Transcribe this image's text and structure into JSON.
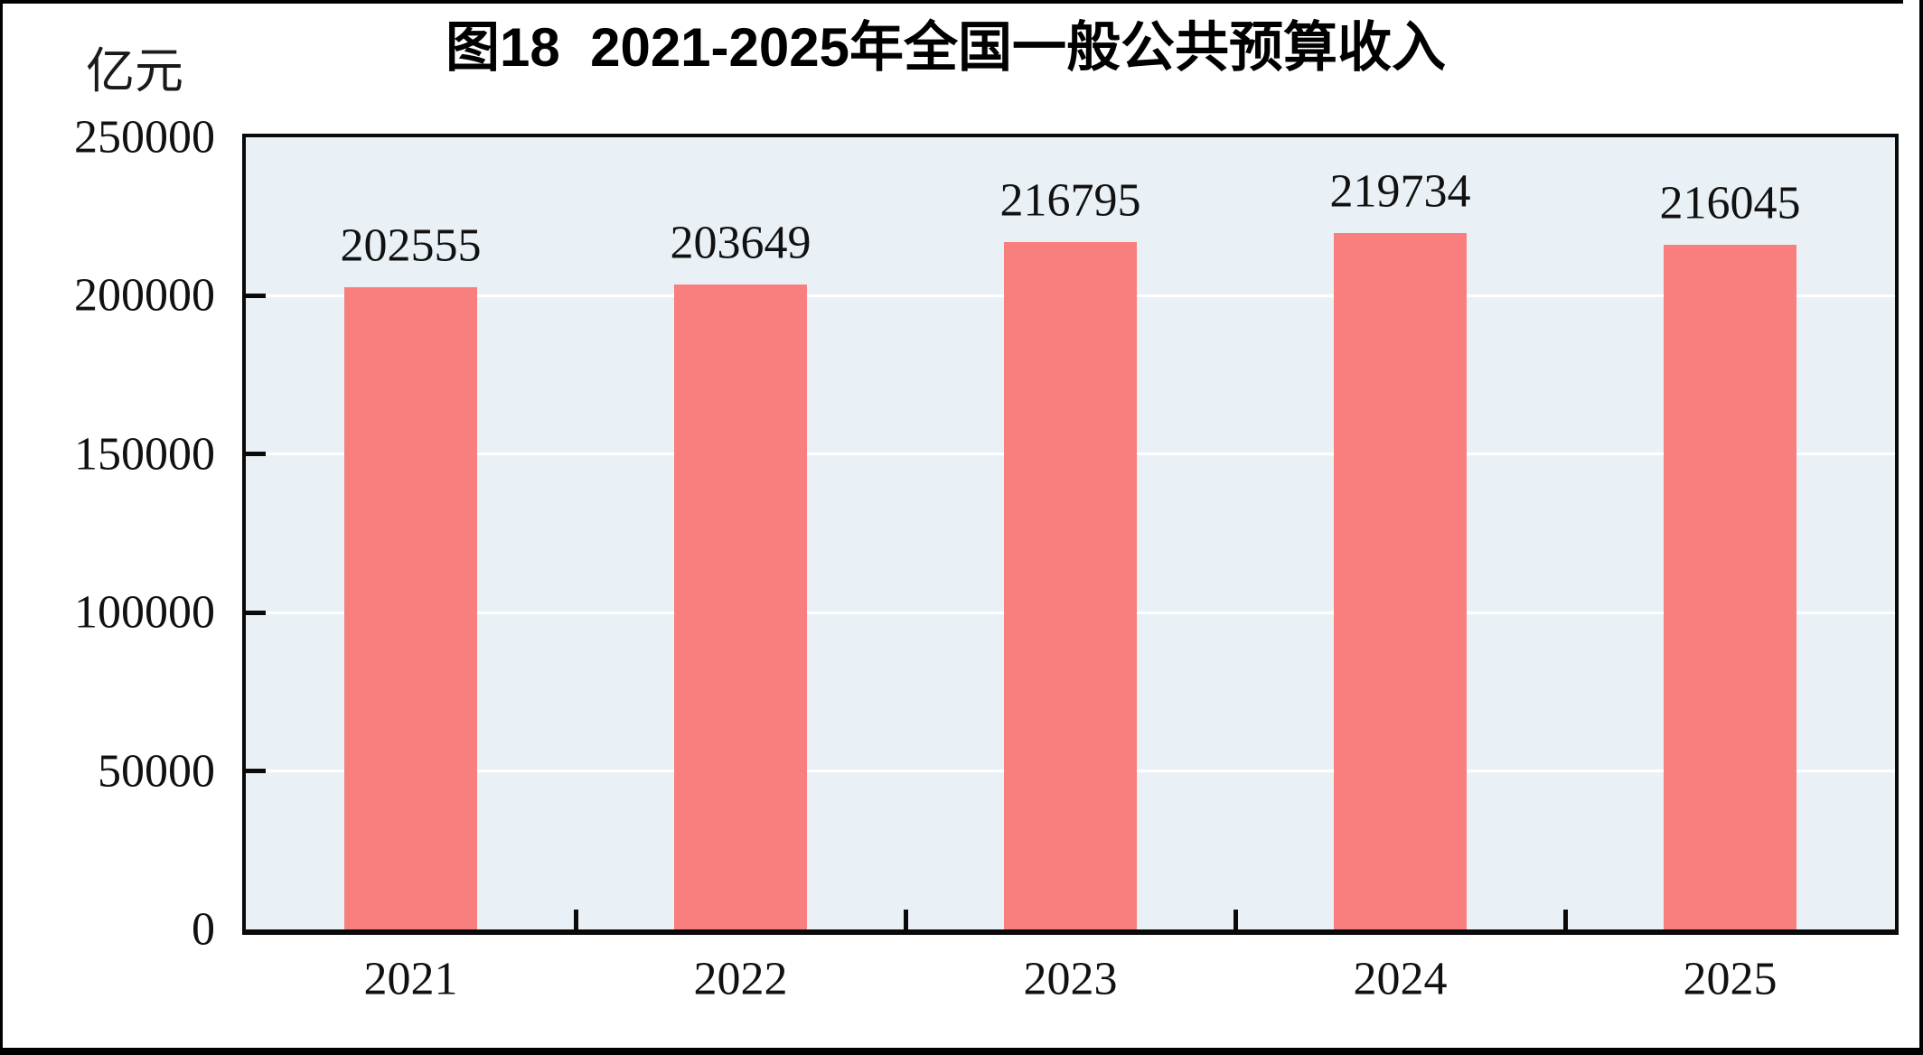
{
  "figure": {
    "title": "图18  2021-2025年全国一般公共预算收入",
    "unit_label": "亿元"
  },
  "chart_data": {
    "type": "bar",
    "title": "图18  2021-2025年全国一般公共预算收入",
    "unit": "亿元",
    "categories": [
      "2021",
      "2022",
      "2023",
      "2024",
      "2025"
    ],
    "values": [
      202555,
      203649,
      216795,
      219734,
      216045
    ],
    "xlabel": "",
    "ylabel": "亿元",
    "ylim": [
      0,
      250000
    ],
    "yticks": [
      0,
      50000,
      100000,
      150000,
      200000,
      250000
    ],
    "grid": "horizontal white gridlines at each y tick",
    "legend_position": "none",
    "bar_value_labels": true,
    "colors": {
      "bar": "#f97e7e",
      "plot_background": "#e9f1f6",
      "gridline": "#ffffff",
      "axis": "#0a0a0a",
      "text": "#111111",
      "title_text": "#000000"
    }
  }
}
